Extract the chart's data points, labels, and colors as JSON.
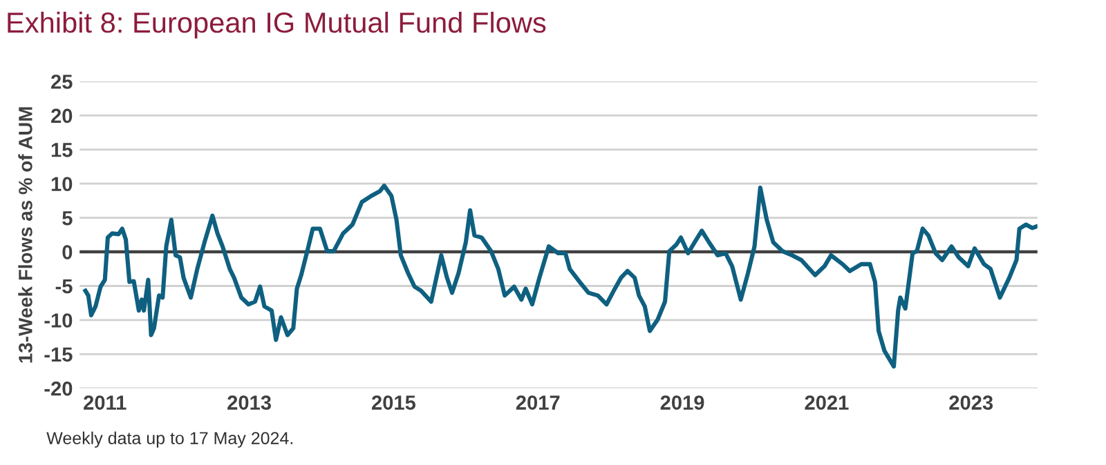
{
  "chart_data": {
    "type": "line",
    "title": "Exhibit 8: European IG Mutual Fund Flows",
    "ylabel": "13-Week Flows as % of AUM",
    "annotations": [
      "Weekly data up to 17 May 2024."
    ],
    "xlim": [
      2010.65,
      2023.92
    ],
    "xticks": [
      2011,
      2013,
      2015,
      2017,
      2019,
      2021,
      2023
    ],
    "ylim": [
      -20,
      25
    ],
    "yticks": [
      -20,
      -15,
      -10,
      -5,
      0,
      5,
      10,
      15,
      20,
      25
    ],
    "grid": "y",
    "ref_lines": [
      {
        "axis": "y",
        "value": 0,
        "label": null,
        "color": "#404040"
      }
    ],
    "series": [
      {
        "color": "#0f6080",
        "x": [
          2010.73,
          2010.77,
          2010.81,
          2010.87,
          2010.94,
          2011.0,
          2011.04,
          2011.1,
          2011.19,
          2011.24,
          2011.29,
          2011.34,
          2011.4,
          2011.47,
          2011.51,
          2011.54,
          2011.6,
          2011.64,
          2011.68,
          2011.75,
          2011.8,
          2011.85,
          2011.92,
          2011.98,
          2012.04,
          2012.09,
          2012.19,
          2012.28,
          2012.38,
          2012.49,
          2012.56,
          2012.63,
          2012.73,
          2012.79,
          2012.89,
          2012.99,
          2013.08,
          2013.15,
          2013.21,
          2013.31,
          2013.37,
          2013.44,
          2013.53,
          2013.61,
          2013.66,
          2013.72,
          2013.82,
          2013.88,
          2013.98,
          2014.08,
          2014.17,
          2014.3,
          2014.43,
          2014.56,
          2014.69,
          2014.81,
          2014.87,
          2014.97,
          2015.04,
          2015.1,
          2015.2,
          2015.29,
          2015.38,
          2015.52,
          2015.58,
          2015.66,
          2015.74,
          2015.81,
          2015.9,
          2016.0,
          2016.06,
          2016.12,
          2016.22,
          2016.35,
          2016.45,
          2016.54,
          2016.67,
          2016.77,
          2016.83,
          2016.92,
          2017.02,
          2017.15,
          2017.28,
          2017.38,
          2017.44,
          2017.6,
          2017.7,
          2017.83,
          2017.95,
          2018.05,
          2018.15,
          2018.24,
          2018.34,
          2018.4,
          2018.48,
          2018.55,
          2018.66,
          2018.76,
          2018.82,
          2018.92,
          2018.98,
          2019.08,
          2019.17,
          2019.27,
          2019.37,
          2019.49,
          2019.6,
          2019.69,
          2019.81,
          2019.91,
          2020.0,
          2020.08,
          2020.17,
          2020.26,
          2020.39,
          2020.52,
          2020.65,
          2020.84,
          2020.97,
          2021.06,
          2021.22,
          2021.32,
          2021.48,
          2021.6,
          2021.67,
          2021.72,
          2021.8,
          2021.93,
          2021.99,
          2022.02,
          2022.09,
          2022.19,
          2022.25,
          2022.33,
          2022.41,
          2022.51,
          2022.6,
          2022.73,
          2022.83,
          2022.96,
          2023.05,
          2023.18,
          2023.27,
          2023.4,
          2023.53,
          2023.63,
          2023.67,
          2023.76,
          2023.85,
          2023.9
        ],
        "values": [
          -5.7,
          -6.4,
          -9.3,
          -8,
          -5.1,
          -4.1,
          2.1,
          2.7,
          2.6,
          3.4,
          1.8,
          -4.4,
          -4.3,
          -8.6,
          -7,
          -8.6,
          -4.1,
          -12.2,
          -11.2,
          -6.4,
          -6.7,
          0.8,
          4.7,
          -0.5,
          -0.8,
          -3.8,
          -6.7,
          -2.5,
          1.4,
          5.3,
          2.7,
          0.8,
          -2.5,
          -3.8,
          -6.7,
          -7.7,
          -7.3,
          -5.1,
          -8,
          -8.6,
          -12.9,
          -9.6,
          -12.2,
          -11.2,
          -5.4,
          -3.4,
          0.8,
          3.4,
          3.4,
          0.1,
          0.1,
          2.7,
          4,
          7.3,
          8.2,
          8.9,
          9.7,
          8.2,
          4.7,
          -0.5,
          -3.1,
          -5.1,
          -5.7,
          -7.3,
          -4.4,
          -0.5,
          -3.8,
          -6,
          -3.1,
          1.4,
          6.1,
          2.4,
          2.1,
          0.1,
          -2.5,
          -6.4,
          -5.1,
          -7,
          -5.4,
          -7.7,
          -3.8,
          0.8,
          -0.2,
          -0.2,
          -2.5,
          -4.7,
          -6,
          -6.4,
          -7.7,
          -5.7,
          -3.8,
          -2.8,
          -3.8,
          -6.4,
          -8,
          -11.6,
          -9.9,
          -7.3,
          0.1,
          1.1,
          2.1,
          -0.2,
          1.4,
          3.1,
          1.4,
          -0.5,
          -0.2,
          -2.1,
          -7,
          -3.1,
          0.8,
          9.4,
          4.7,
          1.4,
          0.1,
          -0.5,
          -1.2,
          -3.4,
          -2.1,
          -0.5,
          -1.8,
          -2.8,
          -1.8,
          -1.8,
          -4.4,
          -11.6,
          -14.5,
          -16.8,
          -8.6,
          -6.7,
          -8.3,
          -0.2,
          0.1,
          3.4,
          2.4,
          -0.2,
          -1.2,
          0.8,
          -0.8,
          -2.1,
          0.5,
          -1.8,
          -2.5,
          -6.7,
          -3.8,
          -1.2,
          3.4,
          4,
          3.5,
          3.7
        ]
      }
    ]
  }
}
